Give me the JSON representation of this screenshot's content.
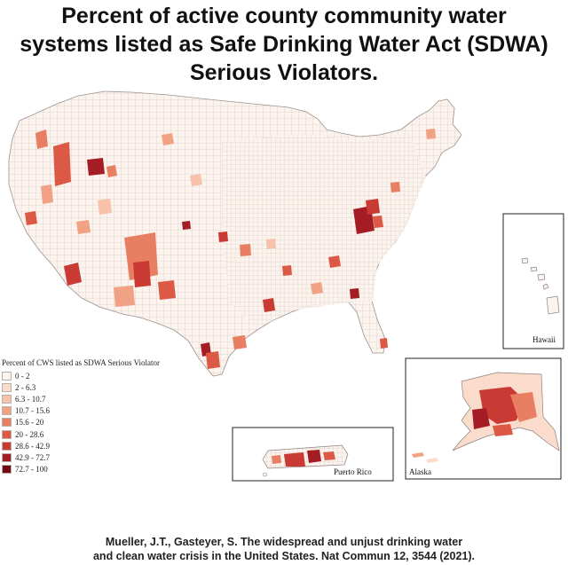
{
  "title_lines": [
    "Percent of active county community water",
    "systems listed as Safe Drinking Water Act (SDWA)",
    "Serious Violators."
  ],
  "insets": {
    "hawaii": "Hawaii",
    "puerto_rico": "Puerto Rico",
    "alaska": "Alaska"
  },
  "legend": {
    "title": "Percent of CWS listed as SDWA Serious Violator",
    "bins": [
      {
        "label": "0 - 2",
        "color": "#fdf3ee"
      },
      {
        "label": "2 - 6.3",
        "color": "#fbdccc"
      },
      {
        "label": "6.3 - 10.7",
        "color": "#f7c1aa"
      },
      {
        "label": "10.7 - 15.6",
        "color": "#f1a184"
      },
      {
        "label": "15.6 - 20",
        "color": "#e97f62"
      },
      {
        "label": "20 - 28.6",
        "color": "#dc5a45"
      },
      {
        "label": "28.6 - 42.9",
        "color": "#c83a33"
      },
      {
        "label": "42.9 - 72.7",
        "color": "#a51d24"
      },
      {
        "label": "72.7 - 100",
        "color": "#6d0a14"
      }
    ]
  },
  "citation_lines": [
    "Mueller, J.T., Gasteyer, S. The widespread and unjust drinking water",
    "and clean water crisis in the United States. Nat Commun 12, 3544 (2021)."
  ]
}
